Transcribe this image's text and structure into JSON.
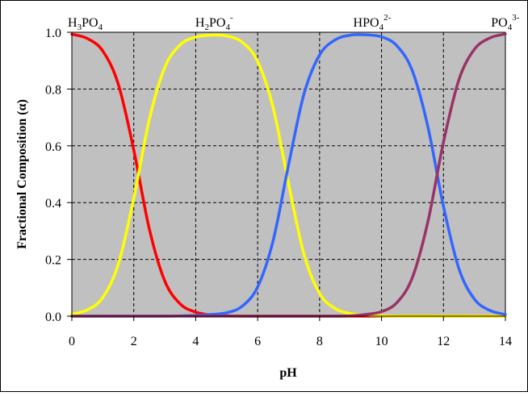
{
  "chart_data": {
    "type": "line",
    "title": "",
    "xlabel": "pH",
    "ylabel": "Fractional Composition (α)",
    "xlim": [
      0,
      14
    ],
    "ylim": [
      0,
      1
    ],
    "x_ticks": [
      "0",
      "2",
      "4",
      "6",
      "8",
      "10",
      "12",
      "14"
    ],
    "y_ticks": [
      "0.0",
      "0.2",
      "0.4",
      "0.6",
      "0.8",
      "1.0"
    ],
    "grid": true,
    "legend": "none",
    "species_labels": [
      {
        "base": "H",
        "s1": "3",
        "mid": "PO",
        "s2": "4",
        "sup": "",
        "at_x": 0
      },
      {
        "base": "H",
        "s1": "2",
        "mid": "PO",
        "s2": "4",
        "sup": "-",
        "at_x": 4.6
      },
      {
        "base": "HPO",
        "s1": "4",
        "mid": "",
        "s2": "",
        "sup": "2-",
        "at_x": 9.7
      },
      {
        "base": "PO",
        "s1": "4",
        "mid": "",
        "s2": "",
        "sup": "3-",
        "at_x": 14
      }
    ],
    "x": [
      0.0,
      0.5,
      1.0,
      1.5,
      2.0,
      2.5,
      3.0,
      3.5,
      4.0,
      4.5,
      5.0,
      5.5,
      6.0,
      6.5,
      7.0,
      7.5,
      8.0,
      8.5,
      9.0,
      9.5,
      10.0,
      10.5,
      11.0,
      11.5,
      12.0,
      12.5,
      13.0,
      13.5,
      14.0
    ],
    "series": [
      {
        "color": "#ff0000",
        "values": [
          0.993,
          0.978,
          0.934,
          0.817,
          0.585,
          0.308,
          0.124,
          0.043,
          0.014,
          0.004,
          0.001,
          0.0,
          0.0,
          0.0,
          0.0,
          0.0,
          0.0,
          0.0,
          0.0,
          0.0,
          0.0,
          0.0,
          0.0,
          0.0,
          0.0,
          0.0,
          0.0,
          0.0,
          0.0
        ]
      },
      {
        "color": "#ffff00",
        "values": [
          0.007,
          0.022,
          0.066,
          0.183,
          0.415,
          0.692,
          0.876,
          0.956,
          0.983,
          0.99,
          0.987,
          0.965,
          0.897,
          0.734,
          0.466,
          0.216,
          0.08,
          0.027,
          0.009,
          0.003,
          0.001,
          0.0,
          0.0,
          0.0,
          0.0,
          0.0,
          0.0,
          0.0,
          0.0
        ]
      },
      {
        "color": "#3366ff",
        "values": [
          0.0,
          0.0,
          0.0,
          0.0,
          0.0,
          0.0,
          0.0,
          0.001,
          0.003,
          0.006,
          0.012,
          0.035,
          0.103,
          0.266,
          0.534,
          0.784,
          0.92,
          0.973,
          0.99,
          0.991,
          0.984,
          0.952,
          0.863,
          0.666,
          0.387,
          0.167,
          0.06,
          0.02,
          0.006
        ]
      },
      {
        "color": "#993366",
        "values": [
          0.0,
          0.0,
          0.0,
          0.0,
          0.0,
          0.0,
          0.0,
          0.0,
          0.0,
          0.0,
          0.0,
          0.0,
          0.0,
          0.0,
          0.0,
          0.0,
          0.0,
          0.0,
          0.001,
          0.006,
          0.016,
          0.048,
          0.137,
          0.334,
          0.613,
          0.833,
          0.94,
          0.98,
          0.994
        ]
      }
    ]
  }
}
